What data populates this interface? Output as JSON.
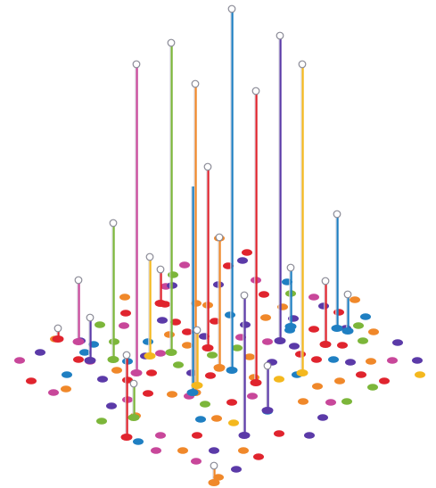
{
  "palette": {
    "red": "#e0242e",
    "orange": "#f0882a",
    "yellow": "#f4b81e",
    "green": "#7cb63a",
    "blue": "#1f7fc2",
    "purple": "#5b3aa8",
    "magenta": "#c8479a",
    "stem_light": "#d8d8e0"
  }
}
